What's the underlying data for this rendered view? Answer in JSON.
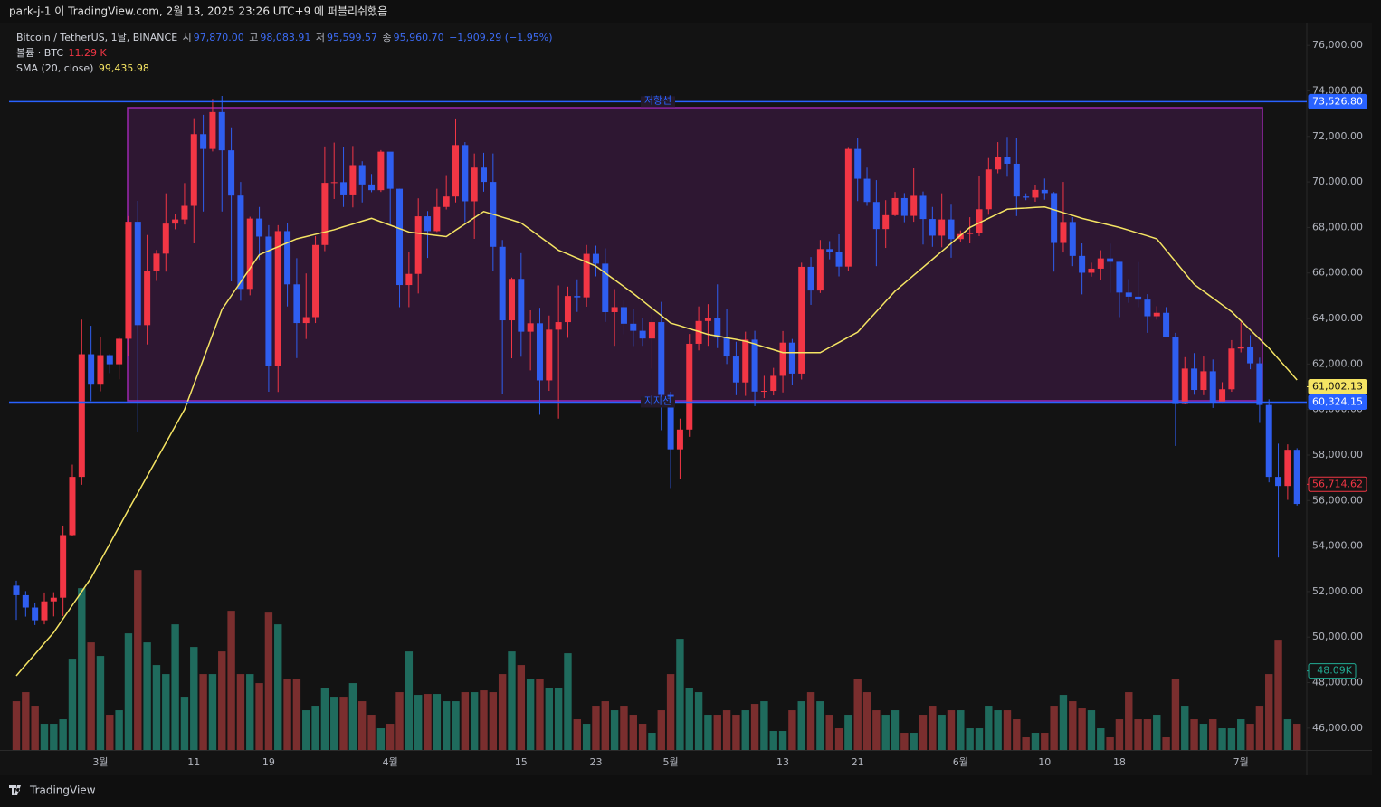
{
  "header": {
    "publish": "park-j-1 이 TradingView.com, 2월 13, 2025 23:26 UTC+9 에 퍼블리쉬했음"
  },
  "legend": {
    "symbol": "Bitcoin / TetherUS, 1날, BINANCE",
    "ohlc": [
      {
        "label": "시",
        "value": "97,870.00"
      },
      {
        "label": "고",
        "value": "98,083.91"
      },
      {
        "label": "저",
        "value": "95,599.57"
      },
      {
        "label": "종",
        "value": "95,960.70"
      }
    ],
    "change": "−1,909.29 (−1.95%)",
    "volume_label": "볼륨 · BTC",
    "volume_value": "11.29 K",
    "sma_label": "SMA (20, close)",
    "sma_value": "99,435.98"
  },
  "footer": {
    "brand": "TradingView"
  },
  "chart_data": {
    "type": "candlestick",
    "up_color": "#f23645",
    "down_color": "#2f5ef0",
    "categories": [
      null,
      null,
      null,
      null,
      null,
      null,
      null,
      null,
      null,
      "3월",
      null,
      null,
      null,
      null,
      null,
      null,
      null,
      null,
      null,
      "11",
      null,
      null,
      null,
      null,
      null,
      null,
      null,
      "19",
      null,
      null,
      null,
      null,
      null,
      null,
      null,
      null,
      null,
      null,
      null,
      null,
      "4월",
      null,
      null,
      null,
      null,
      null,
      null,
      null,
      null,
      null,
      null,
      null,
      null,
      null,
      "15",
      null,
      null,
      null,
      null,
      null,
      null,
      null,
      "23",
      null,
      null,
      null,
      null,
      null,
      null,
      null,
      "5월",
      null,
      null,
      null,
      null,
      null,
      null,
      null,
      null,
      null,
      null,
      null,
      "13",
      null,
      null,
      null,
      null,
      null,
      null,
      null,
      "21",
      null,
      null,
      null,
      null,
      null,
      null,
      null,
      null,
      null,
      null,
      "6월",
      null,
      null,
      null,
      null,
      null,
      null,
      null,
      null,
      "10",
      null,
      null,
      null,
      null,
      null,
      null,
      null,
      "18",
      null,
      null,
      null,
      null,
      null,
      null,
      null,
      null,
      null,
      null,
      null,
      null,
      "7월",
      null,
      null,
      null,
      null,
      null,
      null
    ],
    "open": [
      52260,
      51840,
      51300,
      50740,
      51570,
      51730,
      54480,
      57040,
      62430,
      61130,
      62390,
      61990,
      63110,
      68250,
      63710,
      66070,
      66850,
      68170,
      68350,
      68950,
      72100,
      71450,
      73070,
      71390,
      69400,
      65300,
      68390,
      67600,
      61930,
      67840,
      65500,
      63800,
      64060,
      67230,
      69960,
      69990,
      69450,
      70740,
      69890,
      69640,
      71330,
      69700,
      65470,
      65960,
      68490,
      67840,
      68900,
      69360,
      71620,
      69150,
      70630,
      70000,
      67150,
      63920,
      65740,
      63420,
      63790,
      61280,
      63510,
      63840,
      64990,
      64930,
      66840,
      66410,
      64280,
      64500,
      63770,
      63460,
      63120,
      63840,
      60640,
      58250,
      59120,
      62890,
      63890,
      64030,
      63160,
      62330,
      61190,
      63070,
      60790,
      60820,
      61480,
      62940,
      61580,
      66270,
      65230,
      67050,
      66940,
      66280,
      71450,
      70140,
      69120,
      67930,
      68540,
      69290,
      68510,
      69390,
      68370,
      67640,
      68350,
      67490,
      67710,
      67750,
      68800,
      70550,
      71110,
      70800,
      69360,
      69310,
      69650,
      69510,
      67320,
      68240,
      66750,
      66010,
      66190,
      66640,
      66490,
      65140,
      64960,
      64830,
      64100,
      64250,
      63180,
      60280,
      61800,
      60860,
      61680,
      60320,
      60890,
      62680,
      62770,
      62030,
      60200,
      57040,
      56640,
      58230
    ],
    "high": [
      52480,
      52020,
      51520,
      51960,
      51970,
      54900,
      57580,
      63950,
      63680,
      63200,
      62440,
      63200,
      68500,
      69170,
      67670,
      67010,
      69500,
      68590,
      69950,
      72800,
      72950,
      73650,
      73780,
      72400,
      70000,
      68470,
      68900,
      68100,
      68100,
      68200,
      66650,
      65980,
      67620,
      71560,
      71730,
      71550,
      71580,
      70910,
      70350,
      71400,
      71300,
      69700,
      66910,
      69280,
      68720,
      69700,
      70300,
      72790,
      71750,
      71250,
      71280,
      71250,
      67450,
      65800,
      66870,
      64360,
      64470,
      64130,
      65450,
      65400,
      65720,
      67230,
      67200,
      67080,
      65290,
      64800,
      64400,
      64000,
      64200,
      64730,
      60780,
      59600,
      63320,
      64530,
      64630,
      65500,
      64400,
      62980,
      63420,
      63460,
      61480,
      61830,
      63450,
      63100,
      66450,
      66700,
      67450,
      67400,
      67700,
      71500,
      71950,
      70630,
      70080,
      69200,
      69560,
      69510,
      70600,
      69580,
      68900,
      69500,
      69000,
      67870,
      68450,
      70280,
      71050,
      71750,
      71980,
      71950,
      69500,
      69860,
      70150,
      69560,
      70000,
      68450,
      67300,
      66450,
      67000,
      67290,
      66490,
      65730,
      66480,
      65070,
      64540,
      64500,
      63370,
      62300,
      62480,
      62330,
      62200,
      61200,
      63050,
      63850,
      63270,
      62280,
      60450,
      58500,
      58470,
      58300
    ],
    "low": [
      50760,
      50900,
      50530,
      50560,
      50910,
      50920,
      54450,
      56690,
      60370,
      60800,
      61600,
      61330,
      62330,
      59010,
      62860,
      65650,
      66060,
      67920,
      68130,
      67300,
      68700,
      71340,
      68700,
      65630,
      64780,
      65020,
      66580,
      60780,
      60770,
      64530,
      62260,
      63100,
      63800,
      66960,
      69250,
      68900,
      68880,
      69100,
      69550,
      69560,
      68130,
      64500,
      64500,
      65100,
      66660,
      67800,
      68790,
      69100,
      68230,
      67500,
      69570,
      66080,
      60660,
      62250,
      62320,
      61720,
      59770,
      60820,
      59600,
      63150,
      64290,
      64520,
      65850,
      63850,
      62800,
      63300,
      62790,
      62800,
      61800,
      59090,
      56550,
      56940,
      58800,
      62600,
      62800,
      62700,
      62000,
      60630,
      60600,
      60150,
      60500,
      60620,
      60750,
      61100,
      61320,
      64600,
      65120,
      66600,
      65850,
      66070,
      69160,
      68950,
      66300,
      67100,
      68500,
      68230,
      68250,
      67250,
      67150,
      67130,
      66670,
      67380,
      67300,
      67620,
      68560,
      70380,
      70230,
      68500,
      69200,
      69130,
      69220,
      66060,
      66900,
      66300,
      65060,
      65840,
      65700,
      65130,
      64060,
      64690,
      64500,
      63370,
      63950,
      63170,
      58400,
      60260,
      60650,
      60630,
      60070,
      60300,
      60780,
      62510,
      61770,
      59410,
      56800,
      53500,
      56030,
      55780
    ],
    "close": [
      51840,
      51300,
      50740,
      51570,
      51730,
      54480,
      57040,
      62430,
      61130,
      62390,
      61990,
      63110,
      68250,
      63710,
      66070,
      66850,
      68170,
      68350,
      68950,
      72100,
      71450,
      73070,
      71390,
      69400,
      65300,
      68390,
      67600,
      61930,
      67840,
      65500,
      63800,
      64060,
      67230,
      69960,
      69990,
      69450,
      70740,
      69890,
      69640,
      71330,
      69700,
      65470,
      65960,
      68490,
      67840,
      68900,
      69360,
      71620,
      69150,
      70630,
      70000,
      67150,
      63920,
      65740,
      63420,
      63790,
      61280,
      63510,
      63840,
      64990,
      64930,
      66840,
      66410,
      64280,
      64500,
      63770,
      63460,
      63120,
      63840,
      60640,
      58250,
      59120,
      62890,
      63890,
      64030,
      63160,
      62330,
      61190,
      63070,
      60790,
      60820,
      61480,
      62940,
      61580,
      66270,
      65230,
      67050,
      66940,
      66280,
      71450,
      70140,
      69120,
      67930,
      68540,
      69290,
      68510,
      69390,
      68370,
      67640,
      68350,
      67490,
      67710,
      67750,
      68800,
      70550,
      71110,
      70800,
      69360,
      69310,
      69650,
      69510,
      67320,
      68240,
      66750,
      66010,
      66190,
      66640,
      66490,
      65140,
      64960,
      64830,
      64100,
      64250,
      63180,
      60280,
      61800,
      60860,
      61680,
      60320,
      60890,
      62680,
      62770,
      62030,
      60200,
      57040,
      56640,
      58230,
      55850
    ],
    "ylim": [
      45000,
      77000
    ],
    "yticks": [
      {
        "value": 46000,
        "label": "46,000.00"
      },
      {
        "value": 48000,
        "label": "48,000.00"
      },
      {
        "value": 50000,
        "label": "50,000.00"
      },
      {
        "value": 52000,
        "label": "52,000.00"
      },
      {
        "value": 54000,
        "label": "54,000.00"
      },
      {
        "value": 56000,
        "label": "56,000.00"
      },
      {
        "value": 58000,
        "label": "58,000.00"
      },
      {
        "value": 60000,
        "label": "60,000.00"
      },
      {
        "value": 62000,
        "label": "62,000.00"
      },
      {
        "value": 64000,
        "label": "64,000.00"
      },
      {
        "value": 66000,
        "label": "66,000.00"
      },
      {
        "value": 68000,
        "label": "68,000.00"
      },
      {
        "value": 70000,
        "label": "70,000.00"
      },
      {
        "value": 72000,
        "label": "72,000.00"
      },
      {
        "value": 74000,
        "label": "74,000.00"
      },
      {
        "value": 76000,
        "label": "76,000.00"
      }
    ],
    "sma": {
      "color": "#f5e463",
      "values": [
        48300,
        48780,
        49250,
        49730,
        50200,
        50800,
        51400,
        52000,
        52600,
        53350,
        54100,
        54850,
        55600,
        56330,
        57070,
        57800,
        58530,
        59270,
        60000,
        61100,
        62200,
        63300,
        64400,
        65000,
        65600,
        66200,
        66800,
        66980,
        67150,
        67330,
        67500,
        67600,
        67700,
        67800,
        67900,
        68030,
        68150,
        68280,
        68400,
        68250,
        68100,
        67950,
        67800,
        67750,
        67700,
        67650,
        67600,
        67880,
        68150,
        68430,
        68700,
        68580,
        68450,
        68330,
        68200,
        67900,
        67600,
        67300,
        67000,
        66830,
        66650,
        66480,
        66300,
        66000,
        65700,
        65400,
        65100,
        64780,
        64450,
        64130,
        63800,
        63680,
        63550,
        63430,
        63300,
        63230,
        63150,
        63080,
        63000,
        62880,
        62750,
        62630,
        62500,
        62500,
        62500,
        62500,
        62500,
        62730,
        62950,
        63180,
        63400,
        63850,
        64300,
        64750,
        65200,
        65550,
        65900,
        66250,
        66600,
        66950,
        67300,
        67650,
        68000,
        68200,
        68400,
        68600,
        68800,
        68830,
        68850,
        68880,
        68900,
        68780,
        68650,
        68530,
        68400,
        68300,
        68200,
        68100,
        68000,
        67880,
        67750,
        67630,
        67500,
        67000,
        66500,
        66000,
        65500,
        65200,
        64900,
        64600,
        64300,
        63900,
        63500,
        63100,
        62700,
        62230,
        61770,
        61300
      ]
    },
    "volume": {
      "up_color": "#1f6b5d",
      "down_color": "#7a2e2e",
      "ylim": [
        0,
        120000
      ],
      "values": [
        29700,
        35200,
        26950,
        15950,
        15950,
        18700,
        55550,
        98450,
        65450,
        57200,
        21450,
        24200,
        70950,
        109450,
        65450,
        51700,
        46200,
        76450,
        32450,
        62700,
        46200,
        46200,
        59950,
        84700,
        46200,
        46200,
        40700,
        83600,
        76450,
        43450,
        43450,
        24200,
        26950,
        37950,
        32450,
        32450,
        40700,
        29700,
        21450,
        13200,
        15950,
        35200,
        59950,
        33550,
        34100,
        34100,
        29700,
        29700,
        35200,
        35200,
        36300,
        35200,
        46200,
        59950,
        51700,
        43450,
        43450,
        37950,
        37950,
        58850,
        18700,
        15950,
        26950,
        29700,
        24200,
        26950,
        21450,
        15950,
        10450,
        24200,
        46200,
        67650,
        37950,
        35200,
        21450,
        21450,
        24200,
        21450,
        24200,
        28050,
        29700,
        11550,
        11550,
        24200,
        29700,
        35200,
        29700,
        21450,
        13200,
        21450,
        43450,
        35200,
        24200,
        21450,
        24200,
        10450,
        10450,
        21450,
        26950,
        21450,
        24200,
        24200,
        13200,
        13200,
        26950,
        24200,
        24200,
        18700,
        7700,
        10450,
        10450,
        26950,
        33550,
        29700,
        25300,
        24200,
        13200,
        7700,
        18700,
        35200,
        18700,
        18700,
        21450,
        7700,
        43450,
        26950,
        18700,
        15950,
        18700,
        13200,
        13200,
        18700,
        15950,
        26950,
        46200,
        67100,
        18700,
        15950
      ]
    },
    "lines": [
      {
        "name": "저항선",
        "value": 73526.8,
        "label": "73,526.80",
        "color": "#2962ff"
      },
      {
        "name": "지지선",
        "value": 60324.15,
        "label": "60,324.15",
        "color": "#2962ff"
      }
    ],
    "price_markers": [
      {
        "value": 61002.13,
        "label": "61,002.13",
        "color": "#f5e463",
        "filled": true
      },
      {
        "value": 56714.62,
        "label": "56,714.62",
        "color": "#f23645",
        "filled": false
      }
    ],
    "volume_marker": {
      "value": 48090,
      "label": "48.09K",
      "color": "#22ab94"
    }
  }
}
